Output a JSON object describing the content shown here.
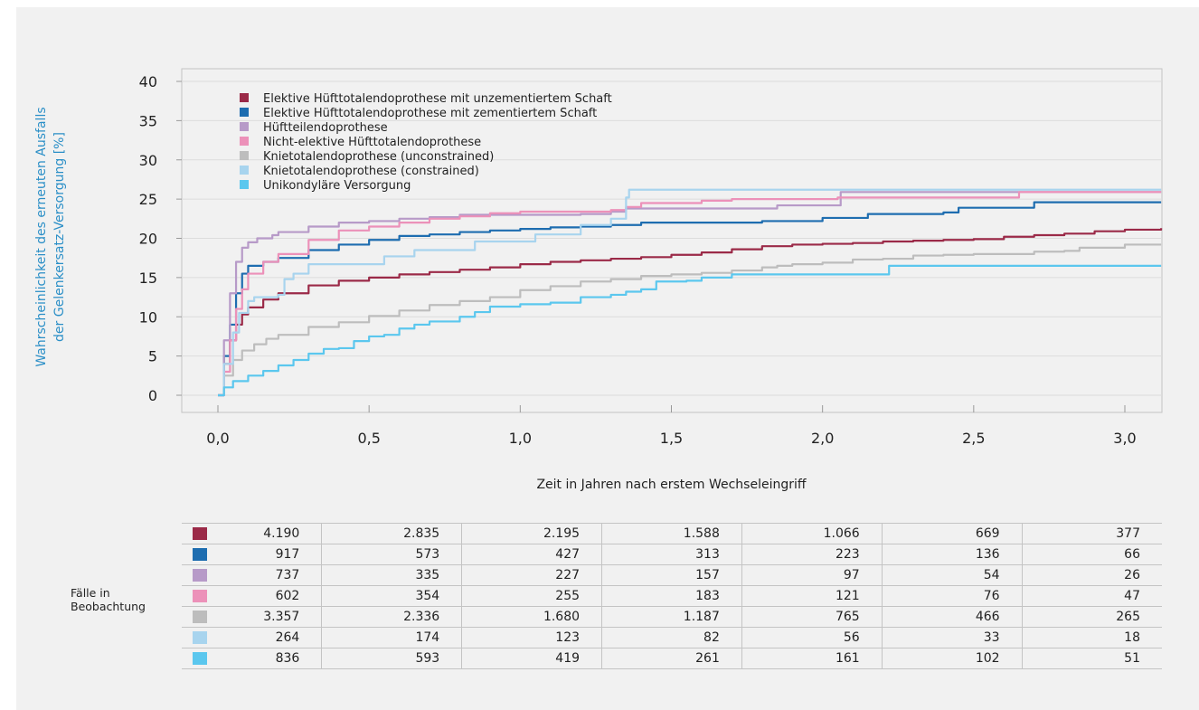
{
  "chart_data": {
    "type": "line",
    "ylabel_line1": "Wahrscheinlichkeit des erneuten Ausfalls",
    "ylabel_line2": "der Gelenkersatz-Versorgung [%]",
    "xlabel": "Zeit in Jahren nach erstem Wechseleingriff",
    "ylim": [
      0,
      40
    ],
    "xlim": [
      -0.12,
      3.12
    ],
    "yticks": [
      0,
      5,
      10,
      15,
      20,
      25,
      30,
      35,
      40
    ],
    "xticks": [
      0,
      0.5,
      1.0,
      1.5,
      2.0,
      2.5,
      3.0
    ],
    "xtick_labels": [
      "0,0",
      "0,5",
      "1,0",
      "1,5",
      "2,0",
      "2,5",
      "3,0"
    ],
    "grid": "horizontal",
    "legend_position": "top-left",
    "series": [
      {
        "name": "Elektive Hüfttotalendoprothese mit unzementiertem Schaft",
        "color": "#9b2a48",
        "points": [
          [
            0,
            0
          ],
          [
            0.02,
            4
          ],
          [
            0.04,
            7
          ],
          [
            0.06,
            9
          ],
          [
            0.08,
            10.3
          ],
          [
            0.1,
            11.2
          ],
          [
            0.15,
            12.2
          ],
          [
            0.2,
            13
          ],
          [
            0.3,
            14
          ],
          [
            0.4,
            14.6
          ],
          [
            0.5,
            15
          ],
          [
            0.6,
            15.4
          ],
          [
            0.7,
            15.7
          ],
          [
            0.8,
            16
          ],
          [
            0.9,
            16.3
          ],
          [
            1.0,
            16.7
          ],
          [
            1.1,
            17
          ],
          [
            1.2,
            17.2
          ],
          [
            1.3,
            17.4
          ],
          [
            1.4,
            17.6
          ],
          [
            1.5,
            17.9
          ],
          [
            1.6,
            18.2
          ],
          [
            1.7,
            18.6
          ],
          [
            1.8,
            19
          ],
          [
            1.9,
            19.2
          ],
          [
            2.0,
            19.3
          ],
          [
            2.1,
            19.4
          ],
          [
            2.2,
            19.6
          ],
          [
            2.3,
            19.7
          ],
          [
            2.4,
            19.8
          ],
          [
            2.5,
            19.9
          ],
          [
            2.6,
            20.2
          ],
          [
            2.7,
            20.4
          ],
          [
            2.8,
            20.6
          ],
          [
            2.9,
            20.9
          ],
          [
            3.0,
            21.1
          ],
          [
            3.12,
            21.3
          ]
        ]
      },
      {
        "name": "Elektive Hüfttotalendoprothese mit zementiertem Schaft",
        "color": "#1e6db0",
        "points": [
          [
            0,
            0
          ],
          [
            0.02,
            5
          ],
          [
            0.04,
            9
          ],
          [
            0.06,
            13
          ],
          [
            0.08,
            15.5
          ],
          [
            0.1,
            16.5
          ],
          [
            0.15,
            17
          ],
          [
            0.2,
            17.5
          ],
          [
            0.3,
            18.5
          ],
          [
            0.4,
            19.2
          ],
          [
            0.5,
            19.8
          ],
          [
            0.6,
            20.3
          ],
          [
            0.7,
            20.5
          ],
          [
            0.8,
            20.8
          ],
          [
            0.9,
            21
          ],
          [
            1.0,
            21.2
          ],
          [
            1.1,
            21.4
          ],
          [
            1.2,
            21.5
          ],
          [
            1.3,
            21.7
          ],
          [
            1.4,
            22
          ],
          [
            1.5,
            22
          ],
          [
            1.6,
            22
          ],
          [
            1.7,
            22
          ],
          [
            1.8,
            22.2
          ],
          [
            1.9,
            22.2
          ],
          [
            2.0,
            22.6
          ],
          [
            2.1,
            22.6
          ],
          [
            2.15,
            23.1
          ],
          [
            2.3,
            23.1
          ],
          [
            2.4,
            23.3
          ],
          [
            2.45,
            23.9
          ],
          [
            2.6,
            23.9
          ],
          [
            2.7,
            24.6
          ],
          [
            3.12,
            24.6
          ]
        ]
      },
      {
        "name": "Hüftteilendoprothese",
        "color": "#b79ac8",
        "points": [
          [
            0,
            0
          ],
          [
            0.02,
            7
          ],
          [
            0.04,
            13
          ],
          [
            0.06,
            17
          ],
          [
            0.08,
            18.8
          ],
          [
            0.1,
            19.5
          ],
          [
            0.13,
            20
          ],
          [
            0.18,
            20.4
          ],
          [
            0.2,
            20.8
          ],
          [
            0.3,
            21.5
          ],
          [
            0.4,
            22
          ],
          [
            0.5,
            22.2
          ],
          [
            0.6,
            22.5
          ],
          [
            0.7,
            22.7
          ],
          [
            0.8,
            23
          ],
          [
            0.9,
            23
          ],
          [
            1.0,
            23
          ],
          [
            1.1,
            23
          ],
          [
            1.2,
            23.1
          ],
          [
            1.3,
            23.4
          ],
          [
            1.35,
            23.8
          ],
          [
            1.5,
            23.8
          ],
          [
            1.6,
            23.8
          ],
          [
            1.7,
            23.8
          ],
          [
            1.85,
            24.2
          ],
          [
            2.05,
            24.2
          ],
          [
            2.06,
            25.9
          ],
          [
            3.12,
            25.9
          ]
        ]
      },
      {
        "name": "Nicht-elektive Hüfttotalendoprothese",
        "color": "#ec91b9",
        "points": [
          [
            0,
            0
          ],
          [
            0.02,
            3
          ],
          [
            0.04,
            7
          ],
          [
            0.06,
            11
          ],
          [
            0.08,
            13.5
          ],
          [
            0.1,
            15.5
          ],
          [
            0.15,
            17
          ],
          [
            0.2,
            18
          ],
          [
            0.3,
            19.8
          ],
          [
            0.4,
            21
          ],
          [
            0.5,
            21.5
          ],
          [
            0.6,
            22
          ],
          [
            0.7,
            22.5
          ],
          [
            0.8,
            22.8
          ],
          [
            0.9,
            23.2
          ],
          [
            1.0,
            23.4
          ],
          [
            1.2,
            23.4
          ],
          [
            1.3,
            23.6
          ],
          [
            1.35,
            24
          ],
          [
            1.4,
            24.5
          ],
          [
            1.6,
            24.8
          ],
          [
            1.7,
            25
          ],
          [
            1.85,
            25
          ],
          [
            2.05,
            25.2
          ],
          [
            2.4,
            25.2
          ],
          [
            2.6,
            25.2
          ],
          [
            2.65,
            25.9
          ],
          [
            3.12,
            25.9
          ]
        ]
      },
      {
        "name": "Knietotalendoprothese (unconstrained)",
        "color": "#bdbdbd",
        "points": [
          [
            0,
            0
          ],
          [
            0.02,
            2.5
          ],
          [
            0.05,
            4.5
          ],
          [
            0.08,
            5.7
          ],
          [
            0.12,
            6.5
          ],
          [
            0.16,
            7.2
          ],
          [
            0.2,
            7.7
          ],
          [
            0.3,
            8.7
          ],
          [
            0.4,
            9.3
          ],
          [
            0.5,
            10.1
          ],
          [
            0.6,
            10.8
          ],
          [
            0.7,
            11.5
          ],
          [
            0.8,
            12
          ],
          [
            0.9,
            12.5
          ],
          [
            1.0,
            13.4
          ],
          [
            1.1,
            13.9
          ],
          [
            1.2,
            14.5
          ],
          [
            1.3,
            14.8
          ],
          [
            1.4,
            15.2
          ],
          [
            1.5,
            15.4
          ],
          [
            1.6,
            15.6
          ],
          [
            1.7,
            15.9
          ],
          [
            1.8,
            16.3
          ],
          [
            1.85,
            16.5
          ],
          [
            1.9,
            16.7
          ],
          [
            2.0,
            16.9
          ],
          [
            2.1,
            17.3
          ],
          [
            2.2,
            17.4
          ],
          [
            2.3,
            17.8
          ],
          [
            2.4,
            17.9
          ],
          [
            2.5,
            18
          ],
          [
            2.7,
            18.3
          ],
          [
            2.8,
            18.4
          ],
          [
            2.85,
            18.8
          ],
          [
            2.95,
            18.8
          ],
          [
            3.0,
            19.2
          ],
          [
            3.12,
            19.2
          ]
        ]
      },
      {
        "name": "Knietotalendoprothese (constrained)",
        "color": "#a8d4ee",
        "points": [
          [
            0,
            0
          ],
          [
            0.02,
            4
          ],
          [
            0.05,
            8
          ],
          [
            0.07,
            10.5
          ],
          [
            0.1,
            12
          ],
          [
            0.12,
            12.5
          ],
          [
            0.2,
            12.8
          ],
          [
            0.22,
            14.8
          ],
          [
            0.25,
            15.5
          ],
          [
            0.3,
            16.7
          ],
          [
            0.4,
            16.7
          ],
          [
            0.5,
            16.7
          ],
          [
            0.55,
            17.7
          ],
          [
            0.6,
            17.7
          ],
          [
            0.65,
            18.5
          ],
          [
            0.8,
            18.5
          ],
          [
            0.85,
            19.6
          ],
          [
            1.0,
            19.6
          ],
          [
            1.05,
            20.5
          ],
          [
            1.2,
            21.7
          ],
          [
            1.3,
            22.5
          ],
          [
            1.35,
            25.2
          ],
          [
            1.36,
            26.2
          ],
          [
            3.12,
            26.2
          ]
        ]
      },
      {
        "name": "Unikondyläre Versorgung",
        "color": "#5bc7ee",
        "points": [
          [
            0,
            0
          ],
          [
            0.02,
            1
          ],
          [
            0.05,
            1.8
          ],
          [
            0.1,
            2.5
          ],
          [
            0.15,
            3.1
          ],
          [
            0.2,
            3.8
          ],
          [
            0.25,
            4.5
          ],
          [
            0.3,
            5.3
          ],
          [
            0.35,
            5.9
          ],
          [
            0.4,
            6
          ],
          [
            0.45,
            6.9
          ],
          [
            0.5,
            7.5
          ],
          [
            0.55,
            7.7
          ],
          [
            0.6,
            8.5
          ],
          [
            0.65,
            9
          ],
          [
            0.7,
            9.4
          ],
          [
            0.8,
            10
          ],
          [
            0.85,
            10.6
          ],
          [
            0.9,
            11.3
          ],
          [
            1.0,
            11.6
          ],
          [
            1.1,
            11.8
          ],
          [
            1.2,
            12.5
          ],
          [
            1.3,
            12.8
          ],
          [
            1.35,
            13.2
          ],
          [
            1.4,
            13.5
          ],
          [
            1.45,
            14.5
          ],
          [
            1.55,
            14.6
          ],
          [
            1.6,
            15
          ],
          [
            1.7,
            15.4
          ],
          [
            1.8,
            15.4
          ],
          [
            1.9,
            15.4
          ],
          [
            2.0,
            15.4
          ],
          [
            2.21,
            15.4
          ],
          [
            2.22,
            16.5
          ],
          [
            3.12,
            16.5
          ]
        ]
      }
    ]
  },
  "cases_table": {
    "label_line1": "Fälle in",
    "label_line2": "Beobachtung",
    "rows": [
      {
        "color": "#9b2a48",
        "values": [
          "4.190",
          "2.835",
          "2.195",
          "1.588",
          "1.066",
          "669",
          "377"
        ]
      },
      {
        "color": "#1e6db0",
        "values": [
          "917",
          "573",
          "427",
          "313",
          "223",
          "136",
          "66"
        ]
      },
      {
        "color": "#b79ac8",
        "values": [
          "737",
          "335",
          "227",
          "157",
          "97",
          "54",
          "26"
        ]
      },
      {
        "color": "#ec91b9",
        "values": [
          "602",
          "354",
          "255",
          "183",
          "121",
          "76",
          "47"
        ]
      },
      {
        "color": "#bdbdbd",
        "values": [
          "3.357",
          "2.336",
          "1.680",
          "1.187",
          "765",
          "466",
          "265"
        ]
      },
      {
        "color": "#a8d4ee",
        "values": [
          "264",
          "174",
          "123",
          "82",
          "56",
          "33",
          "18"
        ]
      },
      {
        "color": "#5bc7ee",
        "values": [
          "836",
          "593",
          "419",
          "261",
          "161",
          "102",
          "51"
        ]
      }
    ]
  }
}
